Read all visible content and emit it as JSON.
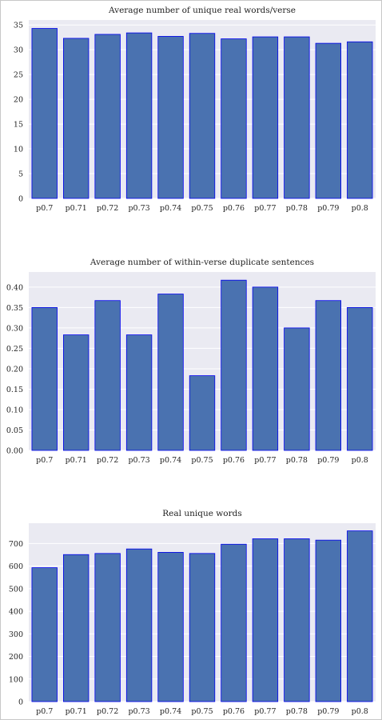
{
  "charts": [
    {
      "type": "bar",
      "title": "Average number of unique real words/verse",
      "categories": [
        "p0.7",
        "p0.71",
        "p0.72",
        "p0.73",
        "p0.74",
        "p0.75",
        "p0.76",
        "p0.77",
        "p0.78",
        "p0.79",
        "p0.8"
      ],
      "values": [
        34.3,
        32.3,
        33.1,
        33.4,
        32.7,
        33.3,
        32.2,
        32.6,
        32.6,
        31.3,
        31.6
      ],
      "ylim": [
        0,
        36
      ],
      "yticks": [
        0,
        5,
        10,
        15,
        20,
        25,
        30,
        35
      ],
      "decimals": 0
    },
    {
      "type": "bar",
      "title": "Average number of within-verse duplicate sentences",
      "categories": [
        "p0.7",
        "p0.71",
        "p0.72",
        "p0.73",
        "p0.74",
        "p0.75",
        "p0.76",
        "p0.77",
        "p0.78",
        "p0.79",
        "p0.8"
      ],
      "values": [
        0.35,
        0.283,
        0.367,
        0.283,
        0.383,
        0.183,
        0.417,
        0.4,
        0.3,
        0.367,
        0.35
      ],
      "ylim": [
        0,
        0.437
      ],
      "yticks": [
        0.0,
        0.05,
        0.1,
        0.15,
        0.2,
        0.25,
        0.3,
        0.35,
        0.4
      ],
      "decimals": 2
    },
    {
      "type": "bar",
      "title": "Real unique words",
      "categories": [
        "p0.7",
        "p0.71",
        "p0.72",
        "p0.73",
        "p0.74",
        "p0.75",
        "p0.76",
        "p0.77",
        "p0.78",
        "p0.79",
        "p0.8"
      ],
      "values": [
        593,
        651,
        656,
        676,
        661,
        656,
        697,
        721,
        721,
        715,
        756
      ],
      "ylim": [
        0,
        790
      ],
      "yticks": [
        0,
        100,
        200,
        300,
        400,
        500,
        600,
        700
      ],
      "decimals": 0
    }
  ],
  "colors": {
    "plot_bg": "#eaeaf2",
    "bar_fill": "#4a72b0",
    "bar_edge": "#0000ee",
    "grid": "#ffffff"
  },
  "grid": true
}
